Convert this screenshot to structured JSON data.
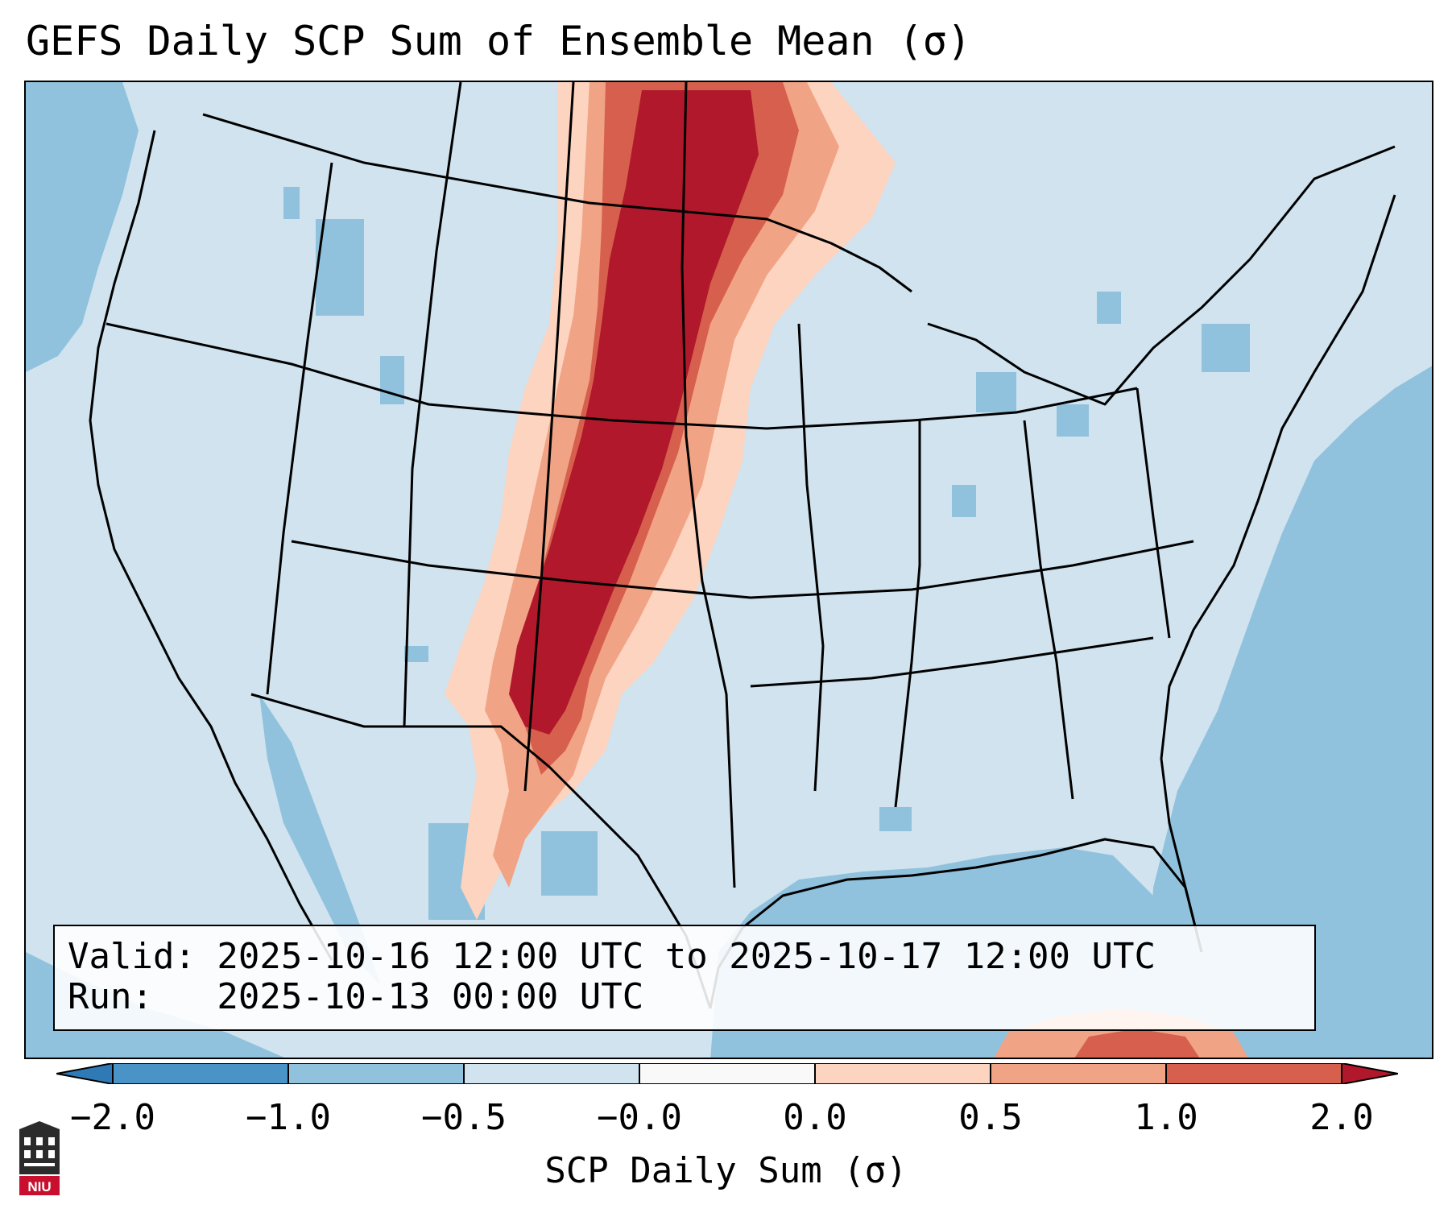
{
  "title": "GEFS Daily SCP Sum of Ensemble Mean (σ)",
  "valid": {
    "valid_line": "Valid: 2025-10-16 12:00 UTC to 2025-10-17 12:00 UTC",
    "run_line": "Run:   2025-10-13 00:00 UTC"
  },
  "colorbar": {
    "title": "SCP Daily Sum (σ)",
    "tick_labels": [
      "−2.0",
      "−1.0",
      "−0.5",
      "−0.0",
      "0.0",
      "0.5",
      "1.0",
      "2.0"
    ],
    "bins": [
      {
        "color": "#2f79b5",
        "range": "< -2.0"
      },
      {
        "color": "#4a93c6",
        "range": "-2.0 to -1.0"
      },
      {
        "color": "#90c2dd",
        "range": "-1.0 to -0.5"
      },
      {
        "color": "#d0e3ef",
        "range": "-0.5 to -0.0"
      },
      {
        "color": "#f9f9f9",
        "range": "-0.0 to 0.0"
      },
      {
        "color": "#fcd4bf",
        "range": "0.0 to 0.5"
      },
      {
        "color": "#f1a385",
        "range": "0.5 to 1.0"
      },
      {
        "color": "#d6604d",
        "range": "1.0 to 2.0"
      },
      {
        "color": "#b2182b",
        "range": "> 2.0"
      }
    ]
  },
  "map": {
    "region": "Contiguous United States",
    "ocean_color": "#90c2dd",
    "land_color": "#d0e3ef",
    "peak_color": "#b2182b"
  },
  "logo_text": "NIU"
}
